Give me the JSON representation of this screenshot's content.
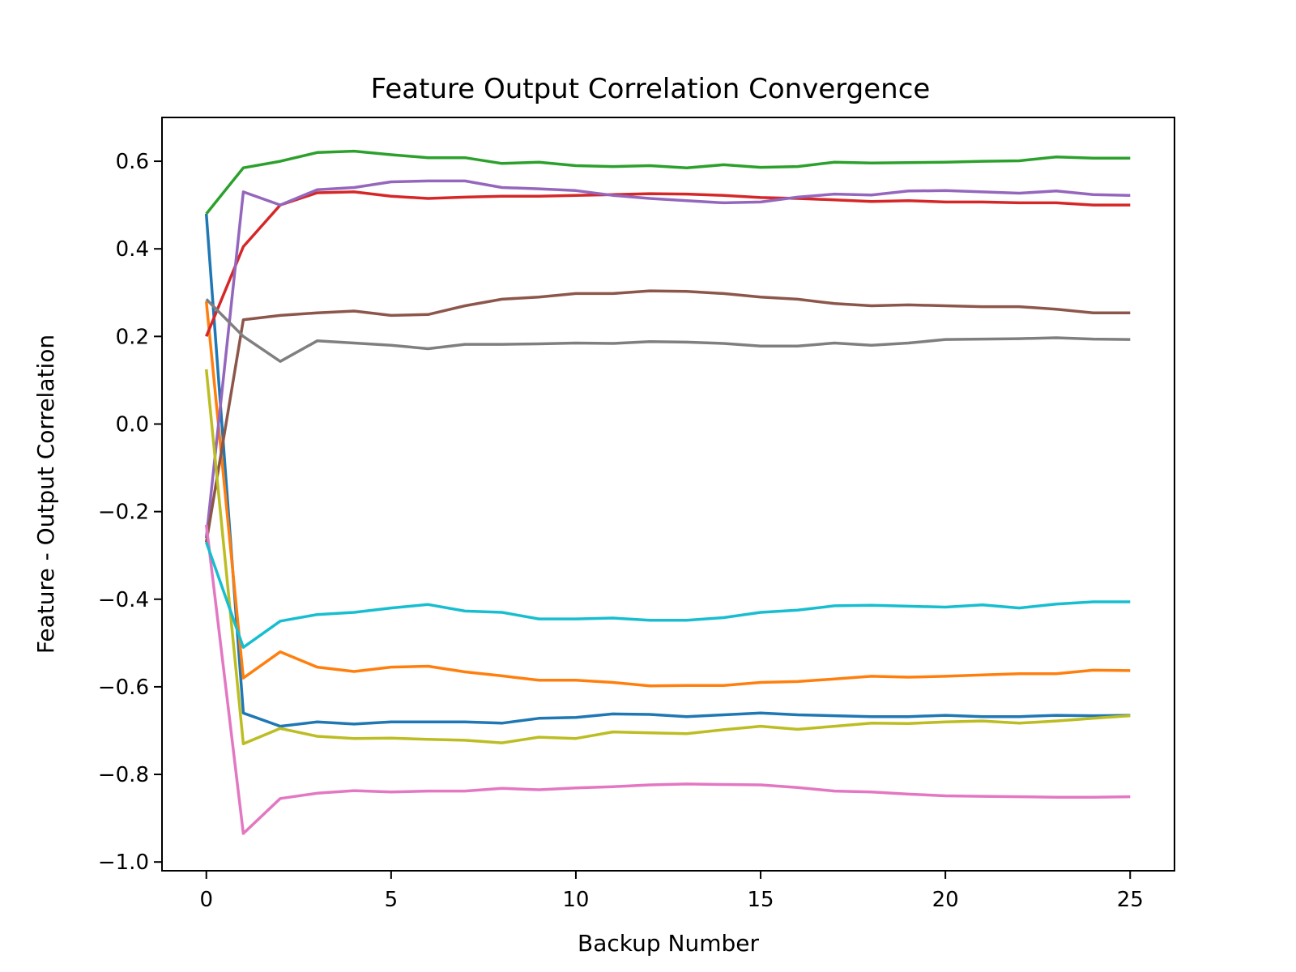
{
  "chart_data": {
    "type": "line",
    "title": "Feature Output Correlation Convergence",
    "xlabel": "Backup Number",
    "ylabel": "Feature - Output Correlation",
    "xlim": [
      -1.2,
      26.2
    ],
    "ylim": [
      -1.02,
      0.7
    ],
    "xticks": [
      0,
      5,
      10,
      15,
      20,
      25
    ],
    "xtick_labels": [
      "0",
      "5",
      "10",
      "15",
      "20",
      "25"
    ],
    "yticks": [
      -1.0,
      -0.8,
      -0.6,
      -0.4,
      -0.2,
      0.0,
      0.2,
      0.4,
      0.6
    ],
    "ytick_labels": [
      "−1.0",
      "−0.8",
      "−0.6",
      "−0.4",
      "−0.2",
      "0.0",
      "0.2",
      "0.4",
      "0.6"
    ],
    "grid": false,
    "legend": "none",
    "x": [
      0,
      1,
      2,
      3,
      4,
      5,
      6,
      7,
      8,
      9,
      10,
      11,
      12,
      13,
      14,
      15,
      16,
      17,
      18,
      19,
      20,
      21,
      22,
      23,
      24,
      25
    ],
    "series": [
      {
        "color": "#1f77b4",
        "values": [
          0.48,
          -0.66,
          -0.69,
          -0.68,
          -0.685,
          -0.68,
          -0.68,
          -0.68,
          -0.683,
          -0.672,
          -0.67,
          -0.662,
          -0.663,
          -0.668,
          -0.664,
          -0.66,
          -0.664,
          -0.666,
          -0.668,
          -0.668,
          -0.665,
          -0.668,
          -0.668,
          -0.665,
          -0.666,
          -0.665
        ]
      },
      {
        "color": "#ff7f0e",
        "values": [
          0.28,
          -0.58,
          -0.52,
          -0.555,
          -0.565,
          -0.555,
          -0.553,
          -0.566,
          -0.575,
          -0.585,
          -0.585,
          -0.59,
          -0.598,
          -0.597,
          -0.597,
          -0.59,
          -0.588,
          -0.582,
          -0.576,
          -0.578,
          -0.576,
          -0.573,
          -0.57,
          -0.57,
          -0.562,
          -0.563
        ]
      },
      {
        "color": "#2ca02c",
        "values": [
          0.48,
          0.585,
          0.6,
          0.62,
          0.623,
          0.615,
          0.608,
          0.608,
          0.595,
          0.598,
          0.59,
          0.588,
          0.59,
          0.585,
          0.592,
          0.586,
          0.588,
          0.598,
          0.596,
          0.597,
          0.598,
          0.6,
          0.601,
          0.61,
          0.607,
          0.607
        ]
      },
      {
        "color": "#d62728",
        "values": [
          0.2,
          0.405,
          0.5,
          0.528,
          0.53,
          0.52,
          0.515,
          0.518,
          0.52,
          0.52,
          0.522,
          0.524,
          0.526,
          0.525,
          0.522,
          0.517,
          0.515,
          0.512,
          0.508,
          0.51,
          0.507,
          0.507,
          0.505,
          0.505,
          0.5,
          0.5
        ]
      },
      {
        "color": "#9467bd",
        "values": [
          -0.26,
          0.53,
          0.5,
          0.535,
          0.54,
          0.553,
          0.555,
          0.555,
          0.54,
          0.537,
          0.533,
          0.522,
          0.515,
          0.51,
          0.505,
          0.507,
          0.518,
          0.525,
          0.523,
          0.532,
          0.533,
          0.53,
          0.527,
          0.532,
          0.524,
          0.522
        ]
      },
      {
        "color": "#8c564b",
        "values": [
          -0.27,
          0.238,
          0.248,
          0.254,
          0.258,
          0.248,
          0.25,
          0.27,
          0.285,
          0.29,
          0.298,
          0.298,
          0.304,
          0.303,
          0.298,
          0.29,
          0.285,
          0.275,
          0.27,
          0.272,
          0.27,
          0.268,
          0.268,
          0.262,
          0.254,
          0.254
        ]
      },
      {
        "color": "#e377c2",
        "values": [
          -0.23,
          -0.935,
          -0.855,
          -0.843,
          -0.837,
          -0.84,
          -0.838,
          -0.838,
          -0.832,
          -0.835,
          -0.831,
          -0.828,
          -0.824,
          -0.822,
          -0.823,
          -0.824,
          -0.83,
          -0.838,
          -0.84,
          -0.845,
          -0.849,
          -0.85,
          -0.851,
          -0.852,
          -0.852,
          -0.851
        ]
      },
      {
        "color": "#7f7f7f",
        "values": [
          0.285,
          0.2,
          0.143,
          0.19,
          0.185,
          0.18,
          0.172,
          0.182,
          0.182,
          0.183,
          0.185,
          0.184,
          0.188,
          0.187,
          0.184,
          0.178,
          0.178,
          0.185,
          0.18,
          0.185,
          0.193,
          0.194,
          0.195,
          0.197,
          0.194,
          0.193
        ]
      },
      {
        "color": "#bcbd22",
        "values": [
          0.125,
          -0.73,
          -0.695,
          -0.713,
          -0.718,
          -0.717,
          -0.72,
          -0.722,
          -0.728,
          -0.715,
          -0.718,
          -0.703,
          -0.705,
          -0.707,
          -0.698,
          -0.69,
          -0.697,
          -0.69,
          -0.683,
          -0.684,
          -0.68,
          -0.678,
          -0.683,
          -0.678,
          -0.672,
          -0.666
        ]
      },
      {
        "color": "#17becf",
        "values": [
          -0.27,
          -0.51,
          -0.45,
          -0.435,
          -0.43,
          -0.42,
          -0.412,
          -0.427,
          -0.43,
          -0.445,
          -0.445,
          -0.443,
          -0.448,
          -0.448,
          -0.442,
          -0.43,
          -0.425,
          -0.415,
          -0.414,
          -0.416,
          -0.418,
          -0.413,
          -0.42,
          -0.411,
          -0.406,
          -0.406
        ]
      }
    ]
  }
}
